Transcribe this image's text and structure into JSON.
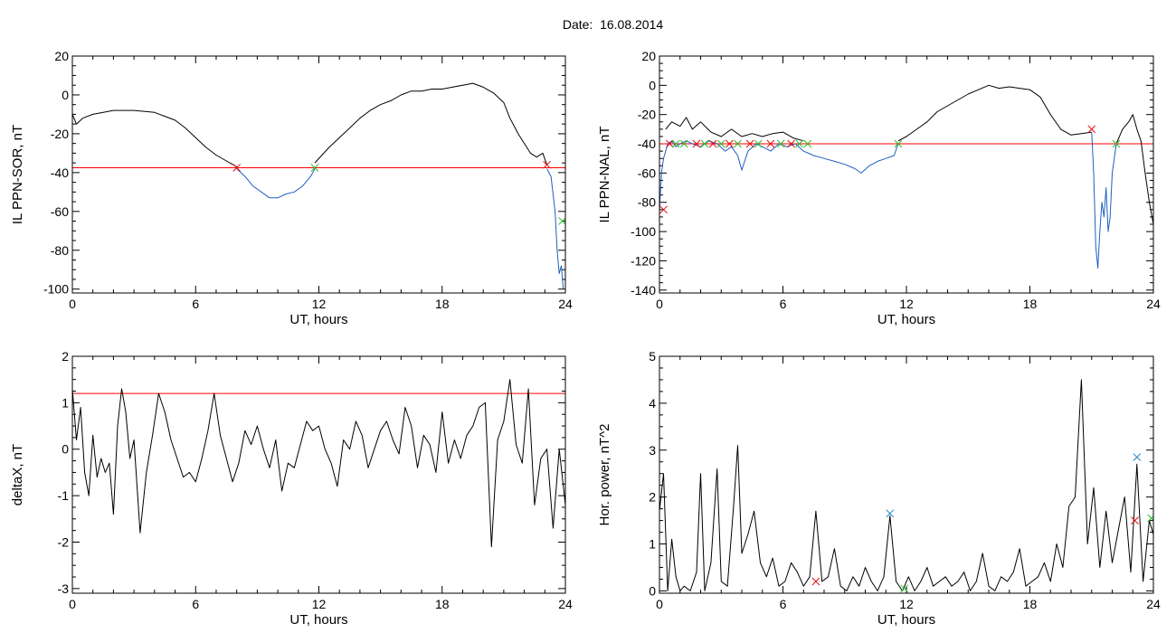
{
  "page": {
    "title": "Date:  16.08.2014"
  },
  "chart_data": [
    {
      "type": "line",
      "xlabel": "UT, hours",
      "ylabel": "IL PPN-SOR, nT",
      "xlim": [
        0,
        24
      ],
      "ylim": [
        -102,
        20
      ],
      "xticks": [
        0,
        6,
        12,
        18,
        24
      ],
      "yticks": [
        20,
        0,
        -20,
        -40,
        -60,
        -80,
        -100
      ],
      "threshold": -37.5,
      "threshold_color": "#ff0000",
      "series": [
        {
          "color": "#000000",
          "x": [
            0,
            0.2,
            0.5,
            1,
            1.5,
            2,
            3,
            4,
            4.5,
            5,
            5.5,
            6,
            6.5,
            7,
            7.5,
            8
          ],
          "y": [
            -10,
            -15,
            -12,
            -10,
            -9,
            -8,
            -8,
            -9,
            -11,
            -13,
            -17,
            -22,
            -27,
            -31,
            -34,
            -37
          ]
        },
        {
          "color": "#1f5fbf",
          "x": [
            8,
            8.4,
            8.8,
            9.2,
            9.6,
            10,
            10.4,
            10.8,
            11.2,
            11.6,
            11.8
          ],
          "y": [
            -38,
            -42,
            -47,
            -50,
            -53,
            -53,
            -51,
            -50,
            -47,
            -42,
            -38
          ]
        },
        {
          "color": "#000000",
          "x": [
            11.8,
            12.5,
            13,
            13.5,
            14,
            14.5,
            15,
            15.5,
            16,
            16.5,
            17,
            17.5,
            18,
            18.5,
            19,
            19.5,
            20,
            20.5,
            21,
            21.3,
            21.7,
            22,
            22.3,
            22.6,
            22.9,
            23.1
          ],
          "y": [
            -35,
            -27,
            -22,
            -17,
            -12,
            -8,
            -5,
            -3,
            0,
            2,
            2,
            3,
            3,
            4,
            5,
            6,
            4,
            1,
            -4,
            -12,
            -20,
            -25,
            -30,
            -32,
            -30,
            -36
          ]
        },
        {
          "color": "#1f5fbf",
          "x": [
            23.1,
            23.3,
            23.5,
            23.6,
            23.7,
            23.8,
            23.9
          ],
          "y": [
            -38,
            -42,
            -60,
            -80,
            -92,
            -88,
            -100
          ]
        }
      ],
      "markers": [
        {
          "x": 8,
          "y": -37.5,
          "color": "#e01010"
        },
        {
          "x": 11.8,
          "y": -37.5,
          "color": "#30c030"
        },
        {
          "x": 23.1,
          "y": -36,
          "color": "#e01010"
        },
        {
          "x": 23.85,
          "y": -65,
          "color": "#30c030"
        }
      ]
    },
    {
      "type": "line",
      "xlabel": "UT, hours",
      "ylabel": "IL PPN-NAL, nT",
      "xlim": [
        0,
        24
      ],
      "ylim": [
        -142,
        20
      ],
      "xticks": [
        0,
        6,
        12,
        18,
        24
      ],
      "yticks": [
        20,
        0,
        -20,
        -40,
        -60,
        -80,
        -100,
        -120,
        -140
      ],
      "threshold": -40,
      "threshold_color": "#ff0000",
      "series": [
        {
          "color": "#1f5fbf",
          "x": [
            0,
            0.1,
            0.2,
            0.4,
            0.6,
            0.8,
            1.0,
            1.3,
            1.6,
            2.0,
            2.4,
            2.8,
            3.2,
            3.5,
            3.8,
            4.0,
            4.3,
            4.7,
            5.0,
            5.4,
            5.8,
            6.2,
            6.6,
            7.0,
            7.5,
            8.0,
            8.5,
            9.0,
            9.5,
            9.8,
            10.2,
            10.6,
            11.0,
            11.4,
            11.6
          ],
          "y": [
            -85,
            -60,
            -50,
            -40,
            -38,
            -42,
            -40,
            -38,
            -40,
            -42,
            -38,
            -40,
            -45,
            -42,
            -48,
            -58,
            -45,
            -40,
            -42,
            -45,
            -40,
            -42,
            -40,
            -45,
            -48,
            -50,
            -52,
            -54,
            -57,
            -60,
            -55,
            -52,
            -50,
            -48,
            -40
          ]
        },
        {
          "color": "#000000",
          "x": [
            0.3,
            0.6,
            1.0,
            1.3,
            1.6,
            2.0,
            2.5,
            3.0,
            3.5,
            4.0,
            4.5,
            5.0,
            5.5,
            6.0,
            6.5,
            7.0
          ],
          "y": [
            -30,
            -25,
            -28,
            -22,
            -30,
            -25,
            -32,
            -35,
            -30,
            -35,
            -33,
            -35,
            -33,
            -32,
            -36,
            -38
          ]
        },
        {
          "color": "#000000",
          "x": [
            11.6,
            12,
            12.5,
            13,
            13.5,
            14,
            14.5,
            15,
            15.5,
            16,
            16.5,
            17,
            17.5,
            18,
            18.5,
            19,
            19.5,
            20,
            20.5,
            21
          ],
          "y": [
            -38,
            -35,
            -30,
            -25,
            -18,
            -14,
            -10,
            -6,
            -3,
            0,
            -2,
            -1,
            -2,
            -3,
            -8,
            -20,
            -30,
            -34,
            -33,
            -32
          ]
        },
        {
          "color": "#1f5fbf",
          "x": [
            21,
            21.1,
            21.2,
            21.3,
            21.4,
            21.5,
            21.6,
            21.7,
            21.8,
            21.9,
            22.0,
            22.2
          ],
          "y": [
            -32,
            -60,
            -110,
            -125,
            -100,
            -80,
            -90,
            -70,
            -100,
            -90,
            -60,
            -40
          ]
        },
        {
          "color": "#000000",
          "x": [
            22.2,
            22.5,
            22.8,
            23.0,
            23.2,
            23.4,
            23.6,
            23.8,
            24
          ],
          "y": [
            -40,
            -30,
            -25,
            -20,
            -30,
            -38,
            -60,
            -80,
            -95
          ]
        }
      ],
      "markers": [
        {
          "x": 0.2,
          "y": -85,
          "color": "#e01010"
        },
        {
          "x": 0.5,
          "y": -40,
          "color": "#e01010"
        },
        {
          "x": 0.8,
          "y": -40,
          "color": "#30c030"
        },
        {
          "x": 1.2,
          "y": -40,
          "color": "#30c030"
        },
        {
          "x": 1.8,
          "y": -40,
          "color": "#e01010"
        },
        {
          "x": 2.2,
          "y": -40,
          "color": "#30c030"
        },
        {
          "x": 2.6,
          "y": -40,
          "color": "#e01010"
        },
        {
          "x": 3.0,
          "y": -40,
          "color": "#30c030"
        },
        {
          "x": 3.4,
          "y": -40,
          "color": "#e01010"
        },
        {
          "x": 3.8,
          "y": -40,
          "color": "#30c030"
        },
        {
          "x": 4.4,
          "y": -40,
          "color": "#e01010"
        },
        {
          "x": 4.8,
          "y": -40,
          "color": "#30c030"
        },
        {
          "x": 5.4,
          "y": -40,
          "color": "#e01010"
        },
        {
          "x": 5.9,
          "y": -40,
          "color": "#30c030"
        },
        {
          "x": 6.4,
          "y": -40,
          "color": "#e01010"
        },
        {
          "x": 6.8,
          "y": -40,
          "color": "#30c030"
        },
        {
          "x": 7.2,
          "y": -40,
          "color": "#30c030"
        },
        {
          "x": 11.6,
          "y": -40,
          "color": "#30c030"
        },
        {
          "x": 21.0,
          "y": -30,
          "color": "#e01010"
        },
        {
          "x": 22.2,
          "y": -40,
          "color": "#30c030"
        }
      ]
    },
    {
      "type": "line",
      "xlabel": "UT, hours",
      "ylabel": "deltaX, nT",
      "xlim": [
        0,
        24
      ],
      "ylim": [
        -3.1,
        2
      ],
      "xticks": [
        0,
        6,
        12,
        18,
        24
      ],
      "yticks": [
        2,
        1,
        0,
        -1,
        -2,
        -3
      ],
      "threshold": 1.2,
      "threshold_color": "#ff0000",
      "series": [
        {
          "color": "#000000",
          "x": [
            0,
            0.2,
            0.4,
            0.6,
            0.8,
            1.0,
            1.2,
            1.4,
            1.6,
            1.8,
            2.0,
            2.2,
            2.4,
            2.6,
            2.8,
            3.0,
            3.3,
            3.6,
            3.9,
            4.2,
            4.5,
            4.8,
            5.1,
            5.4,
            5.7,
            6.0,
            6.3,
            6.6,
            6.9,
            7.2,
            7.5,
            7.8,
            8.1,
            8.4,
            8.7,
            9.0,
            9.3,
            9.6,
            9.9,
            10.2,
            10.5,
            10.8,
            11.1,
            11.4,
            11.7,
            12.0,
            12.3,
            12.6,
            12.9,
            13.2,
            13.5,
            13.8,
            14.1,
            14.4,
            14.7,
            15.0,
            15.3,
            15.6,
            15.9,
            16.2,
            16.5,
            16.8,
            17.1,
            17.4,
            17.7,
            18.0,
            18.3,
            18.6,
            18.9,
            19.2,
            19.5,
            19.8,
            20.1,
            20.4,
            20.7,
            21.0,
            21.3,
            21.6,
            21.9,
            22.2,
            22.5,
            22.8,
            23.1,
            23.4,
            23.7,
            24.0
          ],
          "y": [
            1.3,
            0.2,
            0.9,
            -0.5,
            -1.0,
            0.3,
            -0.6,
            -0.2,
            -0.5,
            -0.3,
            -1.4,
            0.5,
            1.3,
            0.8,
            -0.2,
            0.2,
            -1.8,
            -0.5,
            0.3,
            1.2,
            0.8,
            0.2,
            -0.2,
            -0.6,
            -0.5,
            -0.7,
            -0.2,
            0.4,
            1.2,
            0.3,
            -0.2,
            -0.7,
            -0.3,
            0.4,
            0.1,
            0.5,
            0.0,
            -0.4,
            0.2,
            -0.9,
            -0.3,
            -0.4,
            0.1,
            0.6,
            0.4,
            0.5,
            0.0,
            -0.3,
            -0.8,
            0.2,
            0.0,
            0.6,
            0.3,
            -0.4,
            0.0,
            0.4,
            0.6,
            0.2,
            -0.1,
            0.9,
            0.5,
            -0.4,
            0.3,
            0.1,
            -0.5,
            0.8,
            -0.3,
            0.2,
            -0.2,
            0.3,
            0.5,
            0.9,
            1.0,
            -2.1,
            0.2,
            0.6,
            1.5,
            0.1,
            -0.3,
            1.3,
            -1.2,
            -0.2,
            0.0,
            -1.7,
            0.0,
            -1.2
          ]
        }
      ],
      "markers": []
    },
    {
      "type": "line",
      "xlabel": "UT, hours",
      "ylabel": "Hor. power, nT^2",
      "xlim": [
        0,
        24
      ],
      "ylim": [
        -0.05,
        5
      ],
      "xticks": [
        0,
        6,
        12,
        18,
        24
      ],
      "yticks": [
        5,
        4,
        3,
        2,
        1,
        0
      ],
      "series": [
        {
          "color": "#000000",
          "x": [
            0,
            0.2,
            0.4,
            0.6,
            0.8,
            1.0,
            1.2,
            1.5,
            1.8,
            2.0,
            2.2,
            2.5,
            2.8,
            3.0,
            3.3,
            3.6,
            3.8,
            4.0,
            4.3,
            4.6,
            4.9,
            5.2,
            5.5,
            5.8,
            6.1,
            6.4,
            6.7,
            7.0,
            7.3,
            7.6,
            7.9,
            8.2,
            8.5,
            8.8,
            9.1,
            9.4,
            9.7,
            10.0,
            10.3,
            10.6,
            10.9,
            11.2,
            11.5,
            11.8,
            12.1,
            12.4,
            12.7,
            13.0,
            13.3,
            13.6,
            13.9,
            14.2,
            14.5,
            14.8,
            15.1,
            15.4,
            15.7,
            16.0,
            16.3,
            16.6,
            16.9,
            17.2,
            17.5,
            17.8,
            18.1,
            18.4,
            18.7,
            19.0,
            19.3,
            19.6,
            19.9,
            20.2,
            20.5,
            20.8,
            21.1,
            21.4,
            21.7,
            22.0,
            22.3,
            22.6,
            22.9,
            23.2,
            23.5,
            23.8,
            24.0
          ],
          "y": [
            1.7,
            2.5,
            0.0,
            1.1,
            0.3,
            0.0,
            0.1,
            0.0,
            0.4,
            2.5,
            0.0,
            0.6,
            2.6,
            0.2,
            0.1,
            1.8,
            3.1,
            0.8,
            1.2,
            1.7,
            0.6,
            0.3,
            0.7,
            0.1,
            0.2,
            0.6,
            0.4,
            0.1,
            0.3,
            1.7,
            0.2,
            0.3,
            0.9,
            0.1,
            0.0,
            0.3,
            0.1,
            0.5,
            0.2,
            0.0,
            0.3,
            1.6,
            0.2,
            0.0,
            0.3,
            0.0,
            0.2,
            0.5,
            0.1,
            0.2,
            0.3,
            0.1,
            0.2,
            0.4,
            0.0,
            0.2,
            0.8,
            0.1,
            0.0,
            0.3,
            0.2,
            0.4,
            0.9,
            0.1,
            0.2,
            0.3,
            0.6,
            0.2,
            1.0,
            0.5,
            1.8,
            2.0,
            4.5,
            1.0,
            2.2,
            0.5,
            1.7,
            0.6,
            1.3,
            2.0,
            0.4,
            2.7,
            0.2,
            1.5,
            1.2
          ]
        }
      ],
      "markers": [
        {
          "x": 7.6,
          "y": 0.2,
          "color": "#e01010"
        },
        {
          "x": 11.2,
          "y": 1.65,
          "color": "#1f7fbf"
        },
        {
          "x": 11.9,
          "y": 0.05,
          "color": "#30c030"
        },
        {
          "x": 23.2,
          "y": 2.85,
          "color": "#1f7fbf"
        },
        {
          "x": 23.1,
          "y": 1.5,
          "color": "#e01010"
        },
        {
          "x": 23.9,
          "y": 1.55,
          "color": "#30c030"
        }
      ]
    }
  ]
}
